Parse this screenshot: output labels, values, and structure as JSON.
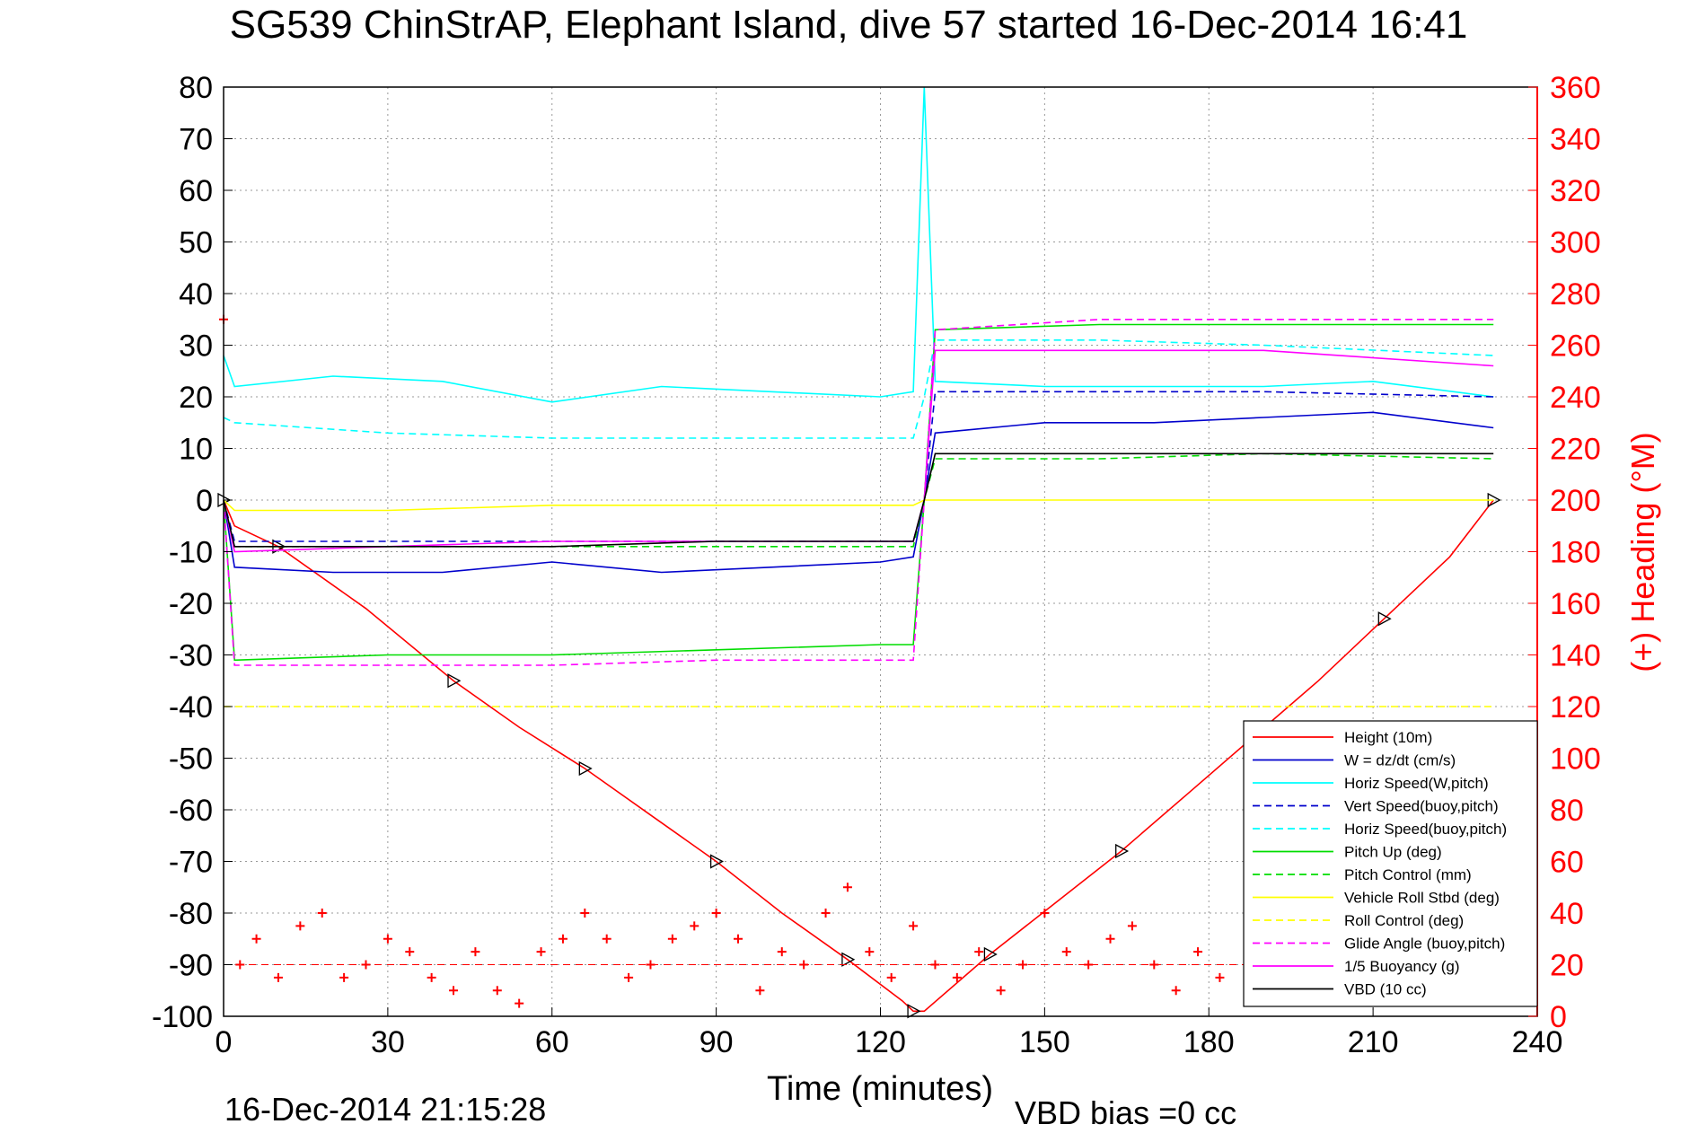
{
  "chart_data": {
    "type": "line",
    "title": "SG539 ChinStrAP, Elephant Island, dive 57 started 16-Dec-2014 16:41",
    "xlabel": "Time (minutes)",
    "ylabel_right": "(+) Heading (°M)",
    "footer_left": "16-Dec-2014 21:15:28",
    "footer_right": "VBD bias =0 cc",
    "xlim": [
      0,
      240
    ],
    "ylim": [
      -100,
      80
    ],
    "y2lim": [
      0,
      360
    ],
    "x_ticks": [
      "0",
      "30",
      "60",
      "90",
      "120",
      "150",
      "180",
      "210",
      "240"
    ],
    "y_ticks": [
      "80",
      "70",
      "60",
      "50",
      "40",
      "30",
      "20",
      "10",
      "0",
      "-10",
      "-20",
      "-30",
      "-40",
      "-50",
      "-60",
      "-70",
      "-80",
      "-90",
      "-100"
    ],
    "y2_ticks": [
      "360",
      "340",
      "320",
      "300",
      "280",
      "260",
      "240",
      "220",
      "200",
      "180",
      "160",
      "140",
      "120",
      "100",
      "80",
      "60",
      "40",
      "20",
      "0"
    ],
    "grid": true,
    "legend_position": "bottom-right",
    "colors": {
      "height": "#ff0000",
      "w": "#0000cc",
      "horiz": "#00ffff",
      "pitch": "#00dd00",
      "roll": "#ffff00",
      "glide": "#ff00ff",
      "vbd": "#000000",
      "heading": "#ff0000"
    },
    "legend": [
      {
        "label": "Height (10m)",
        "color": "#ff0000",
        "dash": false
      },
      {
        "label": "W = dz/dt (cm/s)",
        "color": "#0000cc",
        "dash": false
      },
      {
        "label": "Horiz Speed(W,pitch)",
        "color": "#00ffff",
        "dash": false
      },
      {
        "label": "Vert Speed(buoy,pitch)",
        "color": "#0000cc",
        "dash": true
      },
      {
        "label": "Horiz Speed(buoy,pitch)",
        "color": "#00ffff",
        "dash": true
      },
      {
        "label": "Pitch Up (deg)",
        "color": "#00dd00",
        "dash": false
      },
      {
        "label": "Pitch Control (mm)",
        "color": "#00dd00",
        "dash": true
      },
      {
        "label": "Vehicle Roll Stbd (deg)",
        "color": "#ffff00",
        "dash": false
      },
      {
        "label": "Roll Control (deg)",
        "color": "#ffff00",
        "dash": true
      },
      {
        "label": "Glide Angle (buoy,pitch)",
        "color": "#ff00ff",
        "dash": true
      },
      {
        "label": "1/5 Buoyancy (g)",
        "color": "#ff00ff",
        "dash": false
      },
      {
        "label": "VBD (10 cc)",
        "color": "#000000",
        "dash": false
      }
    ],
    "series": [
      {
        "name": "Height (10m)",
        "x": [
          0,
          2,
          10,
          26,
          42,
          54,
          66,
          78,
          90,
          102,
          114,
          124,
          126,
          128,
          140,
          152,
          164,
          176,
          188,
          200,
          212,
          224,
          232
        ],
        "y": [
          0,
          -5,
          -9,
          -21,
          -35,
          -44,
          -52,
          -61,
          -70,
          -80,
          -89,
          -97,
          -99,
          -99,
          -88,
          -78,
          -68,
          -57,
          -46,
          -35,
          -23,
          -11,
          0
        ]
      },
      {
        "name": "W = dz/dt (cm/s)",
        "x": [
          0,
          2,
          20,
          40,
          60,
          80,
          100,
          120,
          126,
          128,
          130,
          150,
          170,
          190,
          210,
          232
        ],
        "y": [
          0,
          -13,
          -14,
          -14,
          -12,
          -14,
          -13,
          -12,
          -11,
          0,
          13,
          15,
          15,
          16,
          17,
          14
        ]
      },
      {
        "name": "Horiz Speed(W,pitch)",
        "x": [
          0,
          2,
          20,
          40,
          60,
          80,
          100,
          120,
          126,
          128,
          130,
          150,
          170,
          190,
          210,
          232
        ],
        "y": [
          28,
          22,
          24,
          23,
          19,
          22,
          21,
          20,
          21,
          80,
          23,
          22,
          22,
          22,
          23,
          20
        ]
      },
      {
        "name": "Vert Speed(buoy,pitch)",
        "x": [
          0,
          2,
          30,
          60,
          90,
          126,
          128,
          130,
          160,
          190,
          232
        ],
        "y": [
          0,
          -8,
          -8,
          -8,
          -8,
          -8,
          0,
          21,
          21,
          21,
          20
        ]
      },
      {
        "name": "Horiz Speed(buoy,pitch)",
        "x": [
          0,
          2,
          30,
          60,
          90,
          126,
          128,
          130,
          160,
          190,
          232
        ],
        "y": [
          16,
          15,
          13,
          12,
          12,
          12,
          20,
          31,
          31,
          30,
          28
        ]
      },
      {
        "name": "Pitch Up (deg)",
        "x": [
          0,
          2,
          30,
          60,
          90,
          120,
          126,
          128,
          130,
          160,
          190,
          210,
          232
        ],
        "y": [
          0,
          -31,
          -30,
          -30,
          -29,
          -28,
          -28,
          0,
          33,
          34,
          34,
          34,
          34
        ]
      },
      {
        "name": "Pitch Control (mm)",
        "x": [
          0,
          2,
          30,
          60,
          90,
          126,
          128,
          130,
          160,
          190,
          232
        ],
        "y": [
          0,
          -9,
          -9,
          -9,
          -9,
          -9,
          0,
          8,
          8,
          9,
          8
        ]
      },
      {
        "name": "Vehicle Roll Stbd (deg)",
        "x": [
          0,
          2,
          30,
          60,
          90,
          126,
          128,
          130,
          160,
          190,
          232
        ],
        "y": [
          0,
          -2,
          -2,
          -1,
          -1,
          -1,
          0,
          0,
          0,
          0,
          0
        ]
      },
      {
        "name": "Roll Control (deg)",
        "x": [
          0,
          232
        ],
        "y": [
          -40,
          -40
        ]
      },
      {
        "name": "Glide Angle (buoy,pitch)",
        "x": [
          0,
          2,
          30,
          60,
          90,
          126,
          128,
          130,
          160,
          190,
          232
        ],
        "y": [
          0,
          -32,
          -32,
          -32,
          -31,
          -31,
          0,
          33,
          35,
          35,
          35
        ]
      },
      {
        "name": "1/5 Buoyancy (g)",
        "x": [
          0,
          2,
          30,
          60,
          90,
          126,
          128,
          130,
          160,
          190,
          232
        ],
        "y": [
          0,
          -10,
          -9,
          -8,
          -8,
          -8,
          0,
          29,
          29,
          29,
          26
        ]
      },
      {
        "name": "VBD (10 cc)",
        "x": [
          0,
          2,
          30,
          60,
          90,
          126,
          128,
          130,
          160,
          190,
          232
        ],
        "y": [
          0,
          -9,
          -9,
          -9,
          -8,
          -8,
          0,
          9,
          9,
          9,
          9
        ]
      },
      {
        "name": "(+) Heading (°M)",
        "axis": "right",
        "marker": "+",
        "x": [
          0,
          3,
          6,
          10,
          14,
          18,
          22,
          26,
          30,
          34,
          38,
          42,
          46,
          50,
          54,
          58,
          62,
          66,
          70,
          74,
          78,
          82,
          86,
          90,
          94,
          98,
          102,
          106,
          110,
          114,
          118,
          122,
          126,
          130,
          134,
          138,
          142,
          146,
          150,
          154,
          158,
          162,
          166,
          170,
          174,
          178,
          182
        ],
        "y": [
          270,
          20,
          30,
          15,
          35,
          40,
          15,
          20,
          30,
          25,
          15,
          10,
          25,
          10,
          5,
          25,
          30,
          40,
          30,
          15,
          20,
          30,
          35,
          40,
          30,
          10,
          25,
          20,
          40,
          50,
          25,
          15,
          35,
          20,
          15,
          25,
          10,
          20,
          40,
          25,
          20,
          30,
          35,
          20,
          10,
          25,
          15
        ]
      }
    ]
  }
}
